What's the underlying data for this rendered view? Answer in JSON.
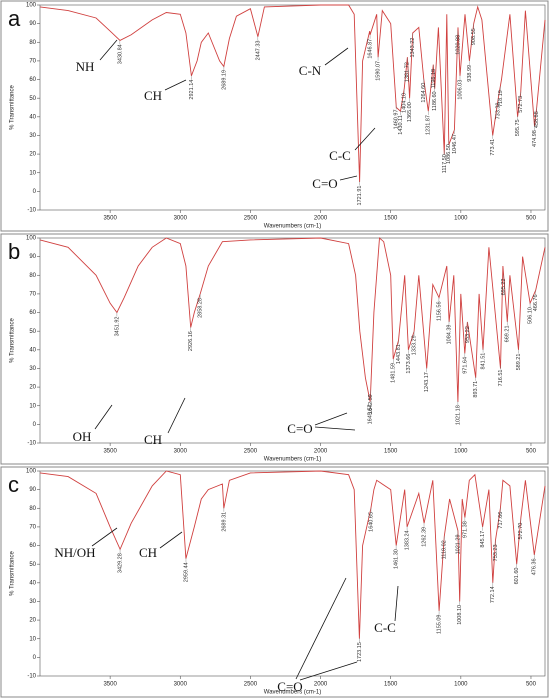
{
  "chart_data": [
    {
      "type": "line",
      "panel": "a",
      "color": "#d0403f",
      "xlabel": "Wavenumbers (cm-1)",
      "ylabel": "% Transmittance",
      "xlim": [
        4000,
        400
      ],
      "ylim": [
        -10,
        100
      ],
      "xticks": [
        3500,
        3000,
        2500,
        2000,
        1500,
        1000,
        500
      ],
      "yticks": [
        -10,
        0,
        10,
        20,
        30,
        40,
        50,
        60,
        70,
        80,
        90,
        100
      ],
      "x": [
        4000,
        3800,
        3600,
        3500,
        3430,
        3350,
        3200,
        3100,
        3000,
        2960,
        2921,
        2880,
        2850,
        2800,
        2720,
        2690,
        2650,
        2600,
        2500,
        2447,
        2400,
        2000,
        1800,
        1760,
        1722,
        1700,
        1650,
        1647,
        1600,
        1590,
        1560,
        1500,
        1460,
        1430,
        1404,
        1381,
        1365,
        1343,
        1300,
        1264,
        1232,
        1196,
        1186,
        1160,
        1118,
        1100,
        1086,
        1046,
        1020,
        1006,
        970,
        939,
        908,
        880,
        850,
        773,
        733,
        710,
        650,
        595,
        573,
        540,
        475,
        459,
        400
      ],
      "values": [
        99,
        97,
        93,
        86,
        81,
        84,
        92,
        96,
        95,
        85,
        62,
        70,
        80,
        85,
        70,
        67,
        82,
        94,
        98,
        83,
        99,
        100,
        100,
        95,
        5,
        70,
        86,
        84,
        95,
        72,
        97,
        90,
        45,
        43,
        55,
        72,
        50,
        85,
        88,
        60,
        43,
        68,
        55,
        88,
        20,
        95,
        25,
        33,
        88,
        62,
        95,
        70,
        90,
        99,
        92,
        30,
        50,
        60,
        95,
        40,
        53,
        97,
        35,
        45,
        92
      ],
      "groups": [
        "NH",
        "CH",
        "C-N",
        "C-C",
        "C=O"
      ],
      "peaks": [
        {
          "value": 3430.84,
          "label": "3430.84"
        },
        {
          "value": 2921.14,
          "label": "2921.14"
        },
        {
          "value": 2689.19,
          "label": "2689.19"
        },
        {
          "value": 2447.33,
          "label": "2447.33"
        },
        {
          "value": 1721.91,
          "label": "1721.91"
        },
        {
          "value": 1646.87,
          "label": "1646.87"
        },
        {
          "value": 1590.07,
          "label": "1590.07"
        },
        {
          "value": 1460.97,
          "label": "1460.97"
        },
        {
          "value": 1430.11,
          "label": "1430.11"
        },
        {
          "value": 1404.1,
          "label": "1404.10"
        },
        {
          "value": 1381.72,
          "label": "1381.72"
        },
        {
          "value": 1365,
          "label": "1365.00"
        },
        {
          "value": 1343.22,
          "label": "1343.22"
        },
        {
          "value": 1264.6,
          "label": "1264.60"
        },
        {
          "value": 1231.87,
          "label": "1231.87"
        },
        {
          "value": 1196.18,
          "label": "1196.18"
        },
        {
          "value": 1186.6,
          "label": "1186.60"
        },
        {
          "value": 1117.5,
          "label": "1117.50"
        },
        {
          "value": 1086.5,
          "label": "1086.50"
        },
        {
          "value": 1046.47,
          "label": "1046.47"
        },
        {
          "value": 1020.88,
          "label": "1020.88"
        },
        {
          "value": 1006.03,
          "label": "1006.03"
        },
        {
          "value": 938.99,
          "label": "938.99"
        },
        {
          "value": 908.55,
          "label": "908.55"
        },
        {
          "value": 773.41,
          "label": "773.41"
        },
        {
          "value": 733.38,
          "label": "733.38"
        },
        {
          "value": 718.19,
          "label": "718.19"
        },
        {
          "value": 595.75,
          "label": "595.75"
        },
        {
          "value": 572.73,
          "label": "572.73"
        },
        {
          "value": 474.98,
          "label": "474.98"
        },
        {
          "value": 458.88,
          "label": "458.88"
        }
      ]
    },
    {
      "type": "line",
      "panel": "b",
      "color": "#d0403f",
      "xlabel": "Wavenumbers (cm-1)",
      "ylabel": "% Transmittance",
      "xlim": [
        4000,
        400
      ],
      "ylim": [
        -10,
        100
      ],
      "xticks": [
        3500,
        3000,
        2500,
        2000,
        1500,
        1000,
        500
      ],
      "yticks": [
        -10,
        0,
        10,
        20,
        30,
        40,
        50,
        60,
        70,
        80,
        90,
        100
      ],
      "x": [
        4000,
        3800,
        3600,
        3500,
        3452,
        3400,
        3300,
        3200,
        3100,
        3000,
        2960,
        2926,
        2900,
        2858,
        2800,
        2700,
        2500,
        2000,
        1800,
        1750,
        1720,
        1680,
        1646,
        1620,
        1580,
        1550,
        1500,
        1482,
        1444,
        1400,
        1374,
        1333,
        1300,
        1243,
        1200,
        1156,
        1100,
        1084,
        1050,
        1021,
        1000,
        972,
        953,
        894,
        870,
        842,
        800,
        717,
        700,
        669,
        650,
        589,
        560,
        506,
        466,
        400
      ],
      "values": [
        99,
        95,
        80,
        65,
        60,
        68,
        85,
        95,
        100,
        97,
        85,
        52,
        60,
        70,
        85,
        98,
        99,
        100,
        97,
        80,
        50,
        25,
        12,
        60,
        100,
        98,
        80,
        35,
        45,
        80,
        40,
        50,
        80,
        30,
        75,
        68,
        85,
        55,
        80,
        12,
        70,
        38,
        55,
        25,
        70,
        40,
        95,
        30,
        85,
        55,
        80,
        40,
        90,
        65,
        72,
        95
      ],
      "groups": [
        "OH",
        "CH",
        "C=O"
      ],
      "peaks": [
        {
          "value": 3451.92,
          "label": "3451.92"
        },
        {
          "value": 2926.16,
          "label": "2926.16"
        },
        {
          "value": 2858.28,
          "label": "2858.28"
        },
        {
          "value": 1642.59,
          "label": "1642.59"
        },
        {
          "value": 1645.57,
          "label": "1645.57"
        },
        {
          "value": 1481.59,
          "label": "1481.59"
        },
        {
          "value": 1443.81,
          "label": "1443.81"
        },
        {
          "value": 1373.66,
          "label": "1373.66"
        },
        {
          "value": 1333.29,
          "label": "1333.29"
        },
        {
          "value": 1243.17,
          "label": "1243.17"
        },
        {
          "value": 1156.56,
          "label": "1156.56"
        },
        {
          "value": 1084.39,
          "label": "1084.39"
        },
        {
          "value": 1021.18,
          "label": "1021.18"
        },
        {
          "value": 971.64,
          "label": "971.64"
        },
        {
          "value": 953.22,
          "label": "953.22"
        },
        {
          "value": 893.71,
          "label": "893.71"
        },
        {
          "value": 841.51,
          "label": "841.51"
        },
        {
          "value": 716.51,
          "label": "716.51"
        },
        {
          "value": 695.22,
          "label": "695.22"
        },
        {
          "value": 669.21,
          "label": "669.21"
        },
        {
          "value": 589.21,
          "label": "589.21"
        },
        {
          "value": 506.1,
          "label": "506.10"
        },
        {
          "value": 466.76,
          "label": "466.76"
        }
      ]
    },
    {
      "type": "line",
      "panel": "c",
      "color": "#d0403f",
      "xlabel": "Wavenumbers (cm-1)",
      "ylabel": "% Transmittance",
      "xlim": [
        4000,
        400
      ],
      "ylim": [
        -10,
        100
      ],
      "xticks": [
        3500,
        3000,
        2500,
        2000,
        1500,
        1000,
        500
      ],
      "yticks": [
        -10,
        0,
        10,
        20,
        30,
        40,
        50,
        60,
        70,
        80,
        90,
        100
      ],
      "x": [
        4000,
        3800,
        3600,
        3500,
        3429,
        3350,
        3200,
        3100,
        3000,
        2960,
        2900,
        2850,
        2800,
        2700,
        2690,
        2650,
        2500,
        2000,
        1800,
        1760,
        1723,
        1700,
        1641,
        1620,
        1600,
        1500,
        1461,
        1400,
        1383,
        1300,
        1262,
        1200,
        1155,
        1118,
        1080,
        1021,
        1008,
        990,
        971,
        940,
        900,
        845,
        800,
        772,
        753,
        718,
        700,
        650,
        602,
        572,
        540,
        476,
        400
      ],
      "values": [
        99,
        97,
        88,
        70,
        58,
        72,
        92,
        100,
        98,
        53,
        70,
        85,
        90,
        93,
        80,
        95,
        99,
        100,
        98,
        90,
        10,
        60,
        80,
        90,
        95,
        90,
        60,
        90,
        70,
        88,
        72,
        95,
        25,
        65,
        85,
        68,
        30,
        85,
        75,
        95,
        98,
        70,
        90,
        40,
        63,
        80,
        95,
        92,
        50,
        75,
        95,
        55,
        92
      ],
      "groups": [
        "NH/OH",
        "CH",
        "C=O",
        "C-C"
      ],
      "peaks": [
        {
          "value": 3429.28,
          "label": "3429.28"
        },
        {
          "value": 2959.44,
          "label": "2959.44"
        },
        {
          "value": 2689.31,
          "label": "2689.31"
        },
        {
          "value": 1723.15,
          "label": "1723.15"
        },
        {
          "value": 1640.65,
          "label": "1640.65"
        },
        {
          "value": 1461.3,
          "label": "1461.30"
        },
        {
          "value": 1383.24,
          "label": "1383.24"
        },
        {
          "value": 1262.39,
          "label": "1262.39"
        },
        {
          "value": 1155.09,
          "label": "1155.09"
        },
        {
          "value": 1118.02,
          "label": "1118.02"
        },
        {
          "value": 1021.29,
          "label": "1021.29"
        },
        {
          "value": 1008.1,
          "label": "1008.10"
        },
        {
          "value": 971.38,
          "label": "971.38"
        },
        {
          "value": 845.17,
          "label": "845.17"
        },
        {
          "value": 772.14,
          "label": "772.14"
        },
        {
          "value": 753.23,
          "label": "753.23"
        },
        {
          "value": 717.66,
          "label": "717.66"
        },
        {
          "value": 601.6,
          "label": "601.60"
        },
        {
          "value": 572.7,
          "label": "572.70"
        },
        {
          "value": 476.36,
          "label": "476.36"
        }
      ]
    }
  ]
}
